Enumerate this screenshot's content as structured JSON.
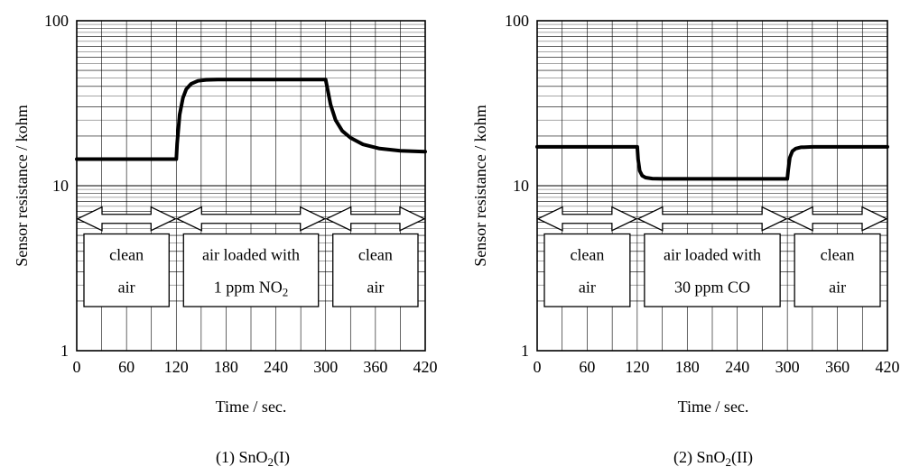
{
  "figure": {
    "background": "#ffffff",
    "line_color": "#000000"
  },
  "chart_data": [
    {
      "type": "line",
      "caption": "(1) SnO2(I)",
      "xlabel": "Time / sec.",
      "ylabel": "Sensor resistance / kohm",
      "xlim": [
        0,
        420
      ],
      "ylim": [
        1,
        100
      ],
      "yscale": "log",
      "grid": true,
      "xticks": [
        "0",
        "60",
        "120",
        "180",
        "240",
        "300",
        "360",
        "420"
      ],
      "yticks": [
        "1",
        "10",
        "100"
      ],
      "series": [
        {
          "x": [
            0,
            120,
            121,
            124,
            128,
            132,
            138,
            146,
            156,
            170,
            300,
            302,
            306,
            312,
            320,
            330,
            345,
            365,
            390,
            420
          ],
          "y": [
            14.5,
            14.5,
            18,
            27,
            34,
            38.5,
            41.5,
            43.2,
            43.8,
            44,
            44,
            39,
            31,
            25,
            21.5,
            19.5,
            17.8,
            16.8,
            16.3,
            16.1
          ]
        }
      ],
      "phases": [
        {
          "start": 0,
          "end": 120,
          "line1": "clean",
          "line2": "air"
        },
        {
          "start": 120,
          "end": 300,
          "line1": "air loaded with",
          "line2": "1 ppm NO2"
        },
        {
          "start": 300,
          "end": 420,
          "line1": "clean",
          "line2": "air"
        }
      ]
    },
    {
      "type": "line",
      "caption": "(2) SnO2(II)",
      "xlabel": "Time / sec.",
      "ylabel": "Sensor resistance / kohm",
      "xlim": [
        0,
        420
      ],
      "ylim": [
        1,
        100
      ],
      "yscale": "log",
      "grid": true,
      "xticks": [
        "0",
        "60",
        "120",
        "180",
        "240",
        "300",
        "360",
        "420"
      ],
      "yticks": [
        "1",
        "10",
        "100"
      ],
      "series": [
        {
          "x": [
            0,
            120,
            121,
            123,
            126,
            130,
            138,
            150,
            300,
            301,
            303,
            306,
            310,
            316,
            330,
            360,
            420
          ],
          "y": [
            17.2,
            17.2,
            14.5,
            12.3,
            11.5,
            11.2,
            11.05,
            11,
            11,
            12.5,
            14.8,
            16.2,
            16.8,
            17.1,
            17.2,
            17.2,
            17.2
          ]
        }
      ],
      "phases": [
        {
          "start": 0,
          "end": 120,
          "line1": "clean",
          "line2": "air"
        },
        {
          "start": 120,
          "end": 300,
          "line1": "air loaded with",
          "line2": "30 ppm CO"
        },
        {
          "start": 300,
          "end": 420,
          "line1": "clean",
          "line2": "air"
        }
      ]
    }
  ]
}
